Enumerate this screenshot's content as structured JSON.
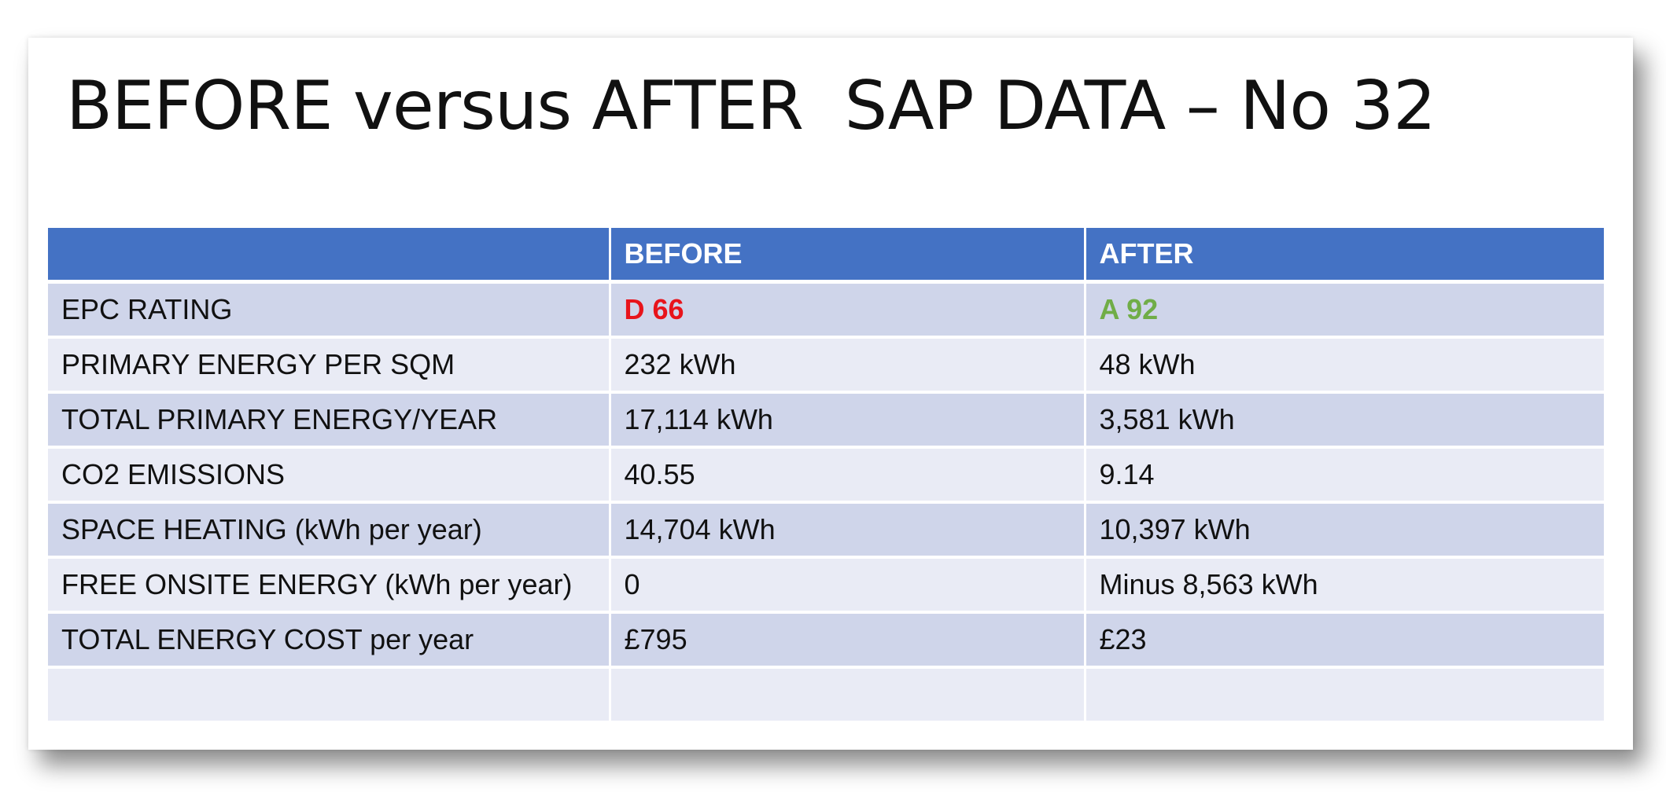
{
  "slide": {
    "title": "BEFORE versus AFTER  SAP DATA – No 32"
  },
  "table": {
    "headers": [
      "",
      "BEFORE",
      "AFTER"
    ],
    "rows": [
      [
        "EPC RATING",
        "D 66",
        "A 92"
      ],
      [
        "PRIMARY ENERGY PER SQM",
        "232 kWh",
        "48 kWh"
      ],
      [
        "TOTAL PRIMARY ENERGY/YEAR",
        "17,114 kWh",
        "3,581 kWh"
      ],
      [
        "CO2 EMISSIONS",
        "40.55",
        "9.14"
      ],
      [
        "SPACE HEATING (kWh per year)",
        "14,704 kWh",
        "10,397 kWh"
      ],
      [
        "FREE ONSITE ENERGY (kWh per year)",
        "0",
        "Minus 8,563 kWh"
      ],
      [
        "TOTAL ENERGY COST per year",
        "£795",
        "£23"
      ],
      [
        "",
        "",
        ""
      ]
    ]
  },
  "colors": {
    "header_bg": "#4472c4",
    "row_odd_bg": "#cfd5ea",
    "row_even_bg": "#e9ebf5",
    "rating_before": "#e8141b",
    "rating_after": "#70ad47"
  }
}
